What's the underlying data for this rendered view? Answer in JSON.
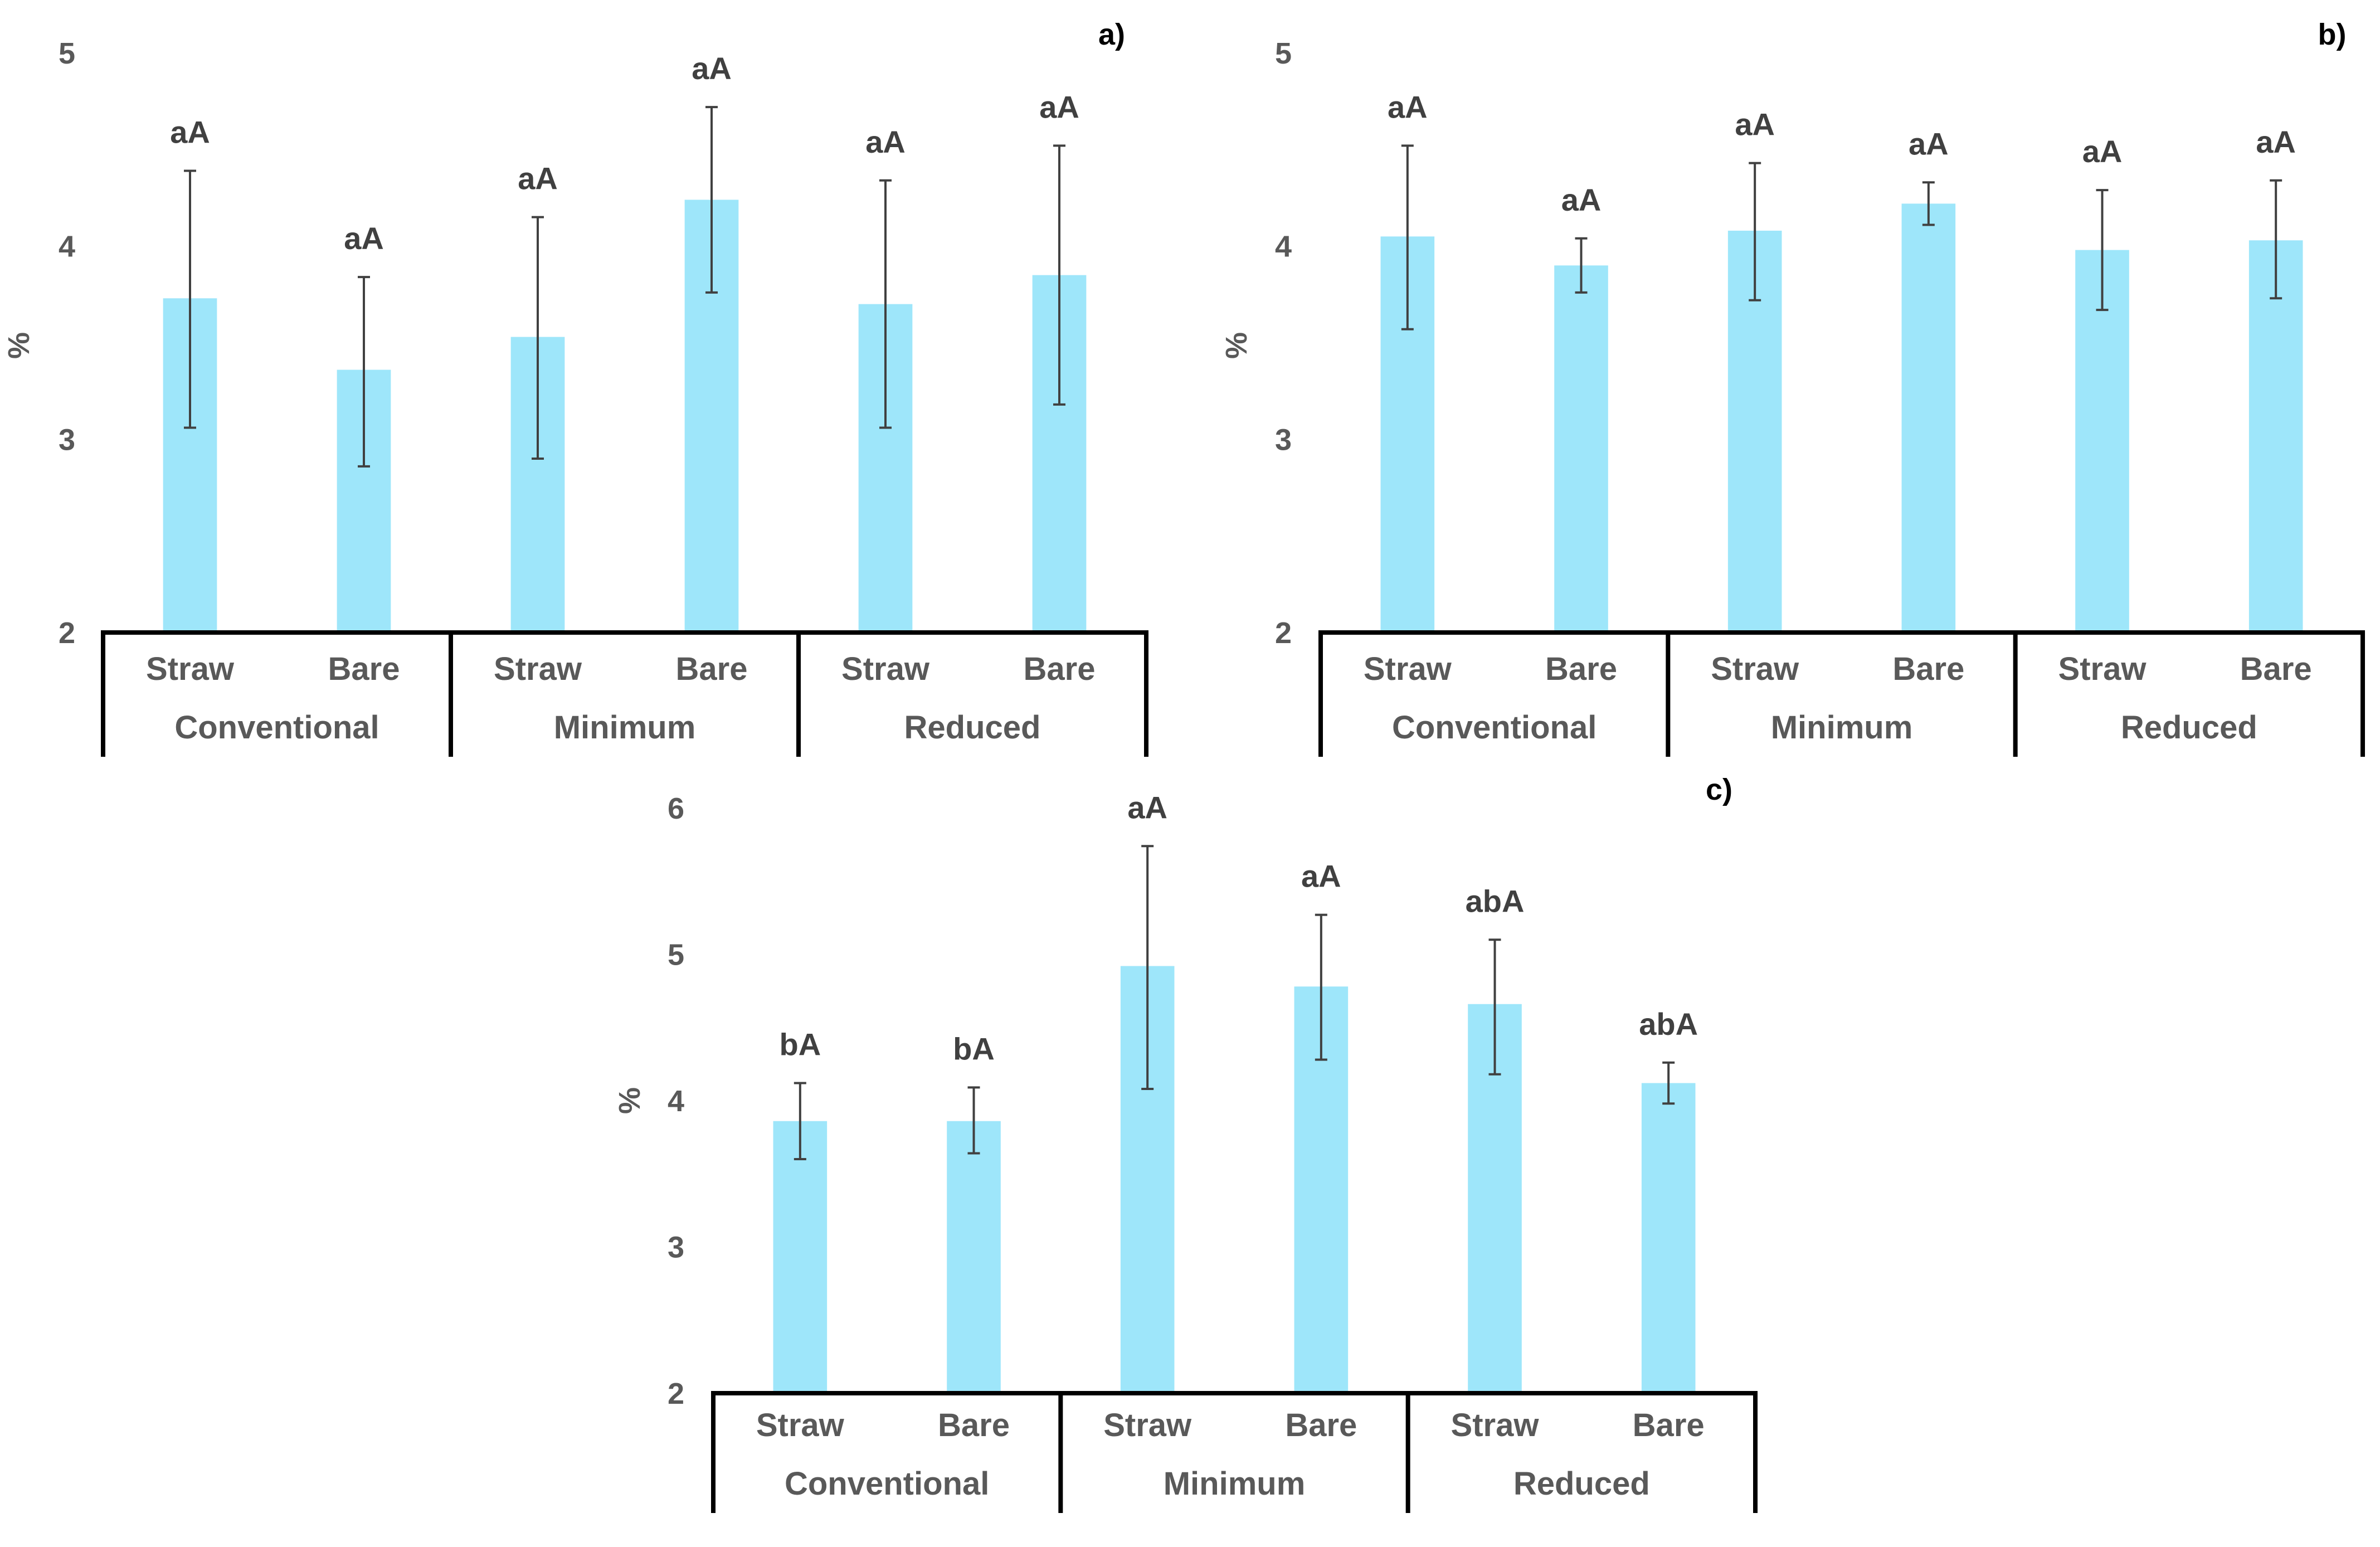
{
  "colors": {
    "bar": "#9ee6fa",
    "error_bar": "#404040",
    "axis": "#000000",
    "text": "#595959"
  },
  "chart_data": [
    {
      "type": "bar",
      "panel_label": "a)",
      "ylabel": "%",
      "ylim": [
        2,
        5
      ],
      "yticks": [
        "2",
        "3",
        "4",
        "5"
      ],
      "categories": [
        "Straw",
        "Bare",
        "Straw",
        "Bare",
        "Straw",
        "Bare"
      ],
      "groups": [
        "Conventional",
        "Minimum",
        "Reduced"
      ],
      "values": [
        3.73,
        3.36,
        3.53,
        4.24,
        3.7,
        3.85
      ],
      "error_low": [
        3.06,
        2.86,
        2.9,
        3.76,
        3.06,
        3.18
      ],
      "error_high": [
        4.39,
        3.84,
        4.15,
        4.72,
        4.34,
        4.52
      ],
      "significance": [
        "aA",
        "aA",
        "aA",
        "aA",
        "aA",
        "aA"
      ]
    },
    {
      "type": "bar",
      "panel_label": "b)",
      "ylabel": "%",
      "ylim": [
        2,
        5
      ],
      "yticks": [
        "2",
        "3",
        "4",
        "5"
      ],
      "categories": [
        "Straw",
        "Bare",
        "Straw",
        "Bare",
        "Straw",
        "Bare"
      ],
      "groups": [
        "Conventional",
        "Minimum",
        "Reduced"
      ],
      "values": [
        4.05,
        3.9,
        4.08,
        4.22,
        3.98,
        4.03
      ],
      "error_low": [
        3.57,
        3.76,
        3.72,
        4.11,
        3.67,
        3.73
      ],
      "error_high": [
        4.52,
        4.04,
        4.43,
        4.33,
        4.29,
        4.34
      ],
      "significance": [
        "aA",
        "aA",
        "aA",
        "aA",
        "aA",
        "aA"
      ]
    },
    {
      "type": "bar",
      "panel_label": "c)",
      "ylabel": "%",
      "ylim": [
        2,
        6
      ],
      "yticks": [
        "2",
        "3",
        "4",
        "5",
        "6"
      ],
      "categories": [
        "Straw",
        "Bare",
        "Straw",
        "Bare",
        "Straw",
        "Bare"
      ],
      "groups": [
        "Conventional",
        "Minimum",
        "Reduced"
      ],
      "values": [
        3.86,
        3.86,
        4.92,
        4.78,
        4.66,
        4.12
      ],
      "error_low": [
        3.6,
        3.64,
        4.08,
        4.28,
        4.18,
        3.98
      ],
      "error_high": [
        4.12,
        4.09,
        5.74,
        5.27,
        5.1,
        4.26
      ],
      "significance": [
        "bA",
        "bA",
        "aA",
        "aA",
        "abA",
        "abA"
      ]
    }
  ]
}
